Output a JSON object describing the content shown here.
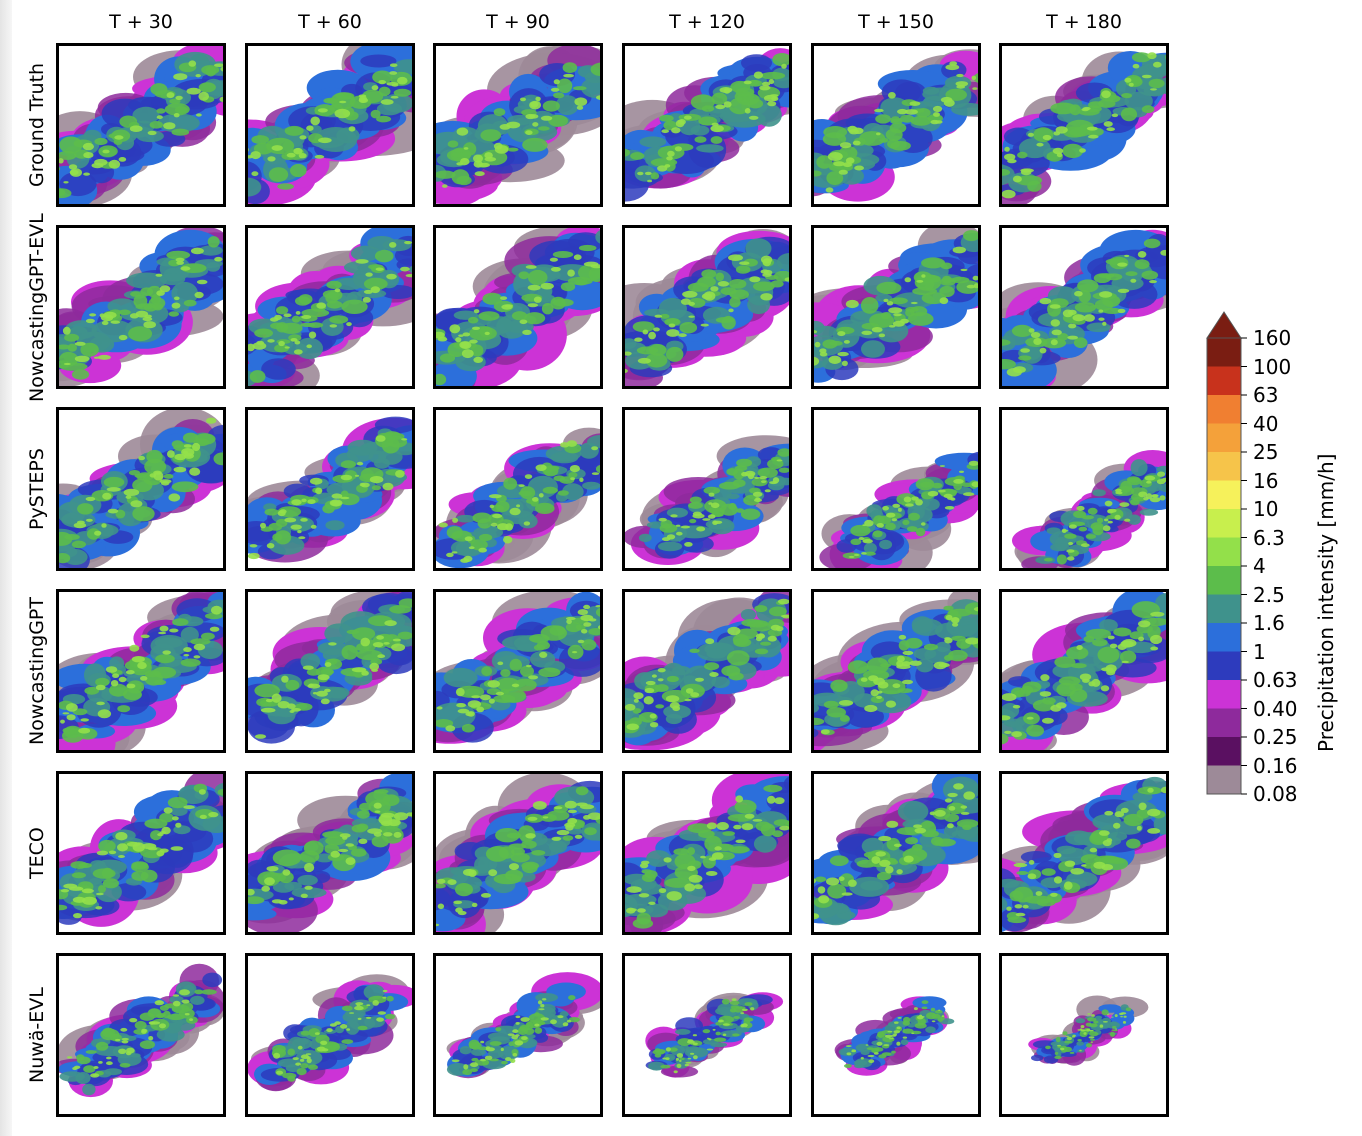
{
  "chart_data": {
    "type": "heatmap",
    "columns": [
      "T + 30",
      "T + 60",
      "T + 90",
      "T + 120",
      "T + 150",
      "T + 180"
    ],
    "rows": [
      "Ground Truth",
      "NowcastingGPT-EVL",
      "PySTEPS",
      "NowcastingGPT",
      "TECO",
      "Nuwä-EVL"
    ],
    "colorbar": {
      "label": "Precipitation intensity [mm/h]",
      "ticks": [
        "160",
        "100",
        "63",
        "40",
        "25",
        "16",
        "10",
        "6.3",
        "4",
        "2.5",
        "1.6",
        "1",
        "0.63",
        "0.40",
        "0.25",
        "0.16",
        "0.08"
      ],
      "colors": [
        "#7a1d12",
        "#c8321c",
        "#f07f31",
        "#f4a13a",
        "#f6c44a",
        "#f6f15b",
        "#c8ef4d",
        "#93e04a",
        "#5cbd4b",
        "#3f928c",
        "#2c6fdb",
        "#2d3bbd",
        "#cc33d6",
        "#8e2a9c",
        "#5a1061",
        "#9d8a98"
      ],
      "extend": "max"
    }
  }
}
